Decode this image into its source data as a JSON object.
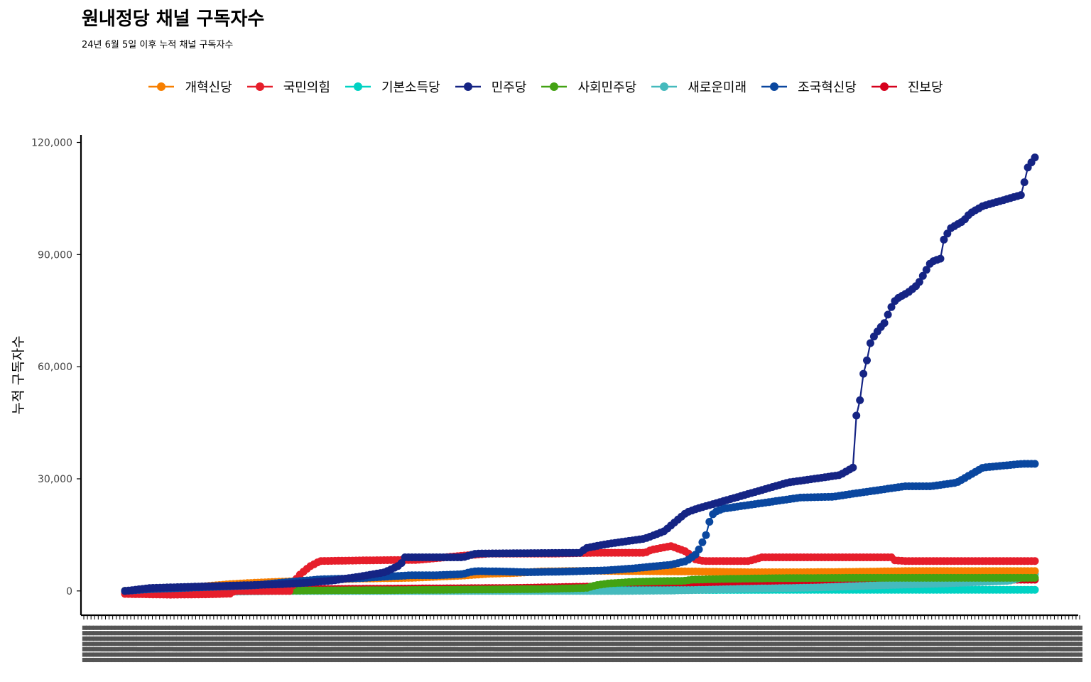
{
  "chart_data": {
    "type": "line",
    "title": "원내정당 채널 구독자수",
    "subtitle": "24년 6월 5일 이후 누적 채널 구독자수",
    "ylabel": "누적 구독자수",
    "xlabel": "",
    "ylim": [
      -6500,
      122000
    ],
    "yticks": [
      0,
      30000,
      60000,
      90000,
      120000
    ],
    "ytick_labels": [
      "0",
      "30,000",
      "60,000",
      "90,000",
      "120,000"
    ],
    "x_tick_count": 277,
    "n_points": 260,
    "legend_position": "top",
    "grid": false,
    "series": [
      {
        "name": "개혁신당",
        "color": "#F77F00",
        "points": [
          [
            0,
            0
          ],
          [
            20,
            200
          ],
          [
            40,
            700
          ],
          [
            60,
            1200
          ],
          [
            80,
            1800
          ],
          [
            100,
            2200
          ],
          [
            130,
            2600
          ],
          [
            160,
            3100
          ],
          [
            180,
            3300
          ],
          [
            200,
            3400
          ],
          [
            220,
            3500
          ],
          [
            240,
            3800
          ],
          [
            260,
            4100
          ],
          [
            280,
            4600
          ],
          [
            300,
            4800
          ],
          [
            320,
            5200
          ],
          [
            360,
            5400
          ],
          [
            400,
            5300
          ],
          [
            440,
            5200
          ],
          [
            480,
            5000
          ],
          [
            520,
            5000
          ],
          [
            560,
            5100
          ],
          [
            600,
            5300
          ]
        ]
      },
      {
        "name": "국민의힘",
        "color": "#E61E2B",
        "points": [
          [
            0,
            -800
          ],
          [
            35,
            -1000
          ],
          [
            65,
            -900
          ],
          [
            82,
            -700
          ],
          [
            84,
            0
          ],
          [
            128,
            0
          ],
          [
            130,
            2500
          ],
          [
            135,
            4500
          ],
          [
            142,
            6500
          ],
          [
            150,
            8000
          ],
          [
            190,
            8200
          ],
          [
            225,
            8300
          ],
          [
            262,
            9500
          ],
          [
            280,
            10000
          ],
          [
            330,
            10000
          ],
          [
            360,
            10200
          ],
          [
            380,
            10200
          ],
          [
            400,
            10200
          ],
          [
            405,
            11000
          ],
          [
            420,
            12000
          ],
          [
            432,
            10500
          ],
          [
            438,
            8500
          ],
          [
            445,
            8000
          ],
          [
            480,
            8000
          ],
          [
            490,
            9000
          ],
          [
            540,
            9000
          ],
          [
            590,
            9000
          ],
          [
            592,
            8200
          ],
          [
            600,
            8000
          ]
        ]
      },
      {
        "name": "기본소득당",
        "color": "#00D2C3",
        "points": [
          [
            0,
            0
          ],
          [
            100,
            50
          ],
          [
            200,
            100
          ],
          [
            300,
            150
          ],
          [
            400,
            200
          ],
          [
            500,
            300
          ],
          [
            600,
            300
          ]
        ]
      },
      {
        "name": "민주당",
        "color": "#152484",
        "points": [
          [
            0,
            0
          ],
          [
            20,
            800
          ],
          [
            40,
            1000
          ],
          [
            80,
            1400
          ],
          [
            120,
            1800
          ],
          [
            140,
            2200
          ],
          [
            160,
            2800
          ],
          [
            180,
            3800
          ],
          [
            200,
            5000
          ],
          [
            212,
            7000
          ],
          [
            215,
            9000
          ],
          [
            260,
            9000
          ],
          [
            270,
            10000
          ],
          [
            350,
            10200
          ],
          [
            355,
            11500
          ],
          [
            370,
            12500
          ],
          [
            380,
            13000
          ],
          [
            400,
            14000
          ],
          [
            415,
            16000
          ],
          [
            425,
            19000
          ],
          [
            432,
            21000
          ],
          [
            440,
            22000
          ],
          [
            470,
            25000
          ],
          [
            510,
            29000
          ],
          [
            530,
            30000
          ],
          [
            550,
            31000
          ],
          [
            555,
            32000
          ],
          [
            560,
            33000
          ],
          [
            562,
            46000
          ],
          [
            565,
            50000
          ],
          [
            568,
            58000
          ],
          [
            571,
            62000
          ],
          [
            573,
            66000
          ],
          [
            576,
            68000
          ],
          [
            580,
            70000
          ],
          [
            585,
            72000
          ],
          [
            588,
            75000
          ],
          [
            593,
            78000
          ],
          [
            603,
            80000
          ],
          [
            610,
            82000
          ],
          [
            615,
            85000
          ],
          [
            620,
            88000
          ],
          [
            628,
            89000
          ],
          [
            630,
            94000
          ],
          [
            635,
            97000
          ],
          [
            645,
            99000
          ],
          [
            650,
            101000
          ],
          [
            660,
            103000
          ],
          [
            670,
            104000
          ],
          [
            680,
            105000
          ],
          [
            690,
            106000
          ],
          [
            694,
            113000
          ],
          [
            700,
            116000
          ]
        ]
      },
      {
        "name": "사회민주당",
        "color": "#43A213",
        "points": [
          [
            0,
            0
          ],
          [
            120,
            100
          ],
          [
            200,
            200
          ],
          [
            320,
            500
          ],
          [
            355,
            800
          ],
          [
            362,
            1500
          ],
          [
            372,
            2000
          ],
          [
            390,
            2400
          ],
          [
            410,
            2600
          ],
          [
            430,
            2700
          ],
          [
            436,
            3000
          ],
          [
            460,
            3200
          ],
          [
            500,
            3400
          ],
          [
            560,
            3500
          ],
          [
            600,
            3500
          ]
        ]
      },
      {
        "name": "새로운미래",
        "color": "#45BABD",
        "points": [
          [
            0,
            -300
          ],
          [
            80,
            -200
          ],
          [
            100,
            -100
          ],
          [
            120,
            0
          ],
          [
            200,
            0
          ],
          [
            300,
            0
          ],
          [
            380,
            0
          ],
          [
            420,
            100
          ],
          [
            480,
            600
          ],
          [
            530,
            900
          ],
          [
            580,
            1500
          ],
          [
            630,
            2000
          ],
          [
            680,
            2700
          ],
          [
            700,
            4500
          ]
        ]
      },
      {
        "name": "조국혁신당",
        "color": "#0A479F",
        "points": [
          [
            0,
            0
          ],
          [
            20,
            500
          ],
          [
            60,
            1000
          ],
          [
            100,
            1500
          ],
          [
            120,
            2200
          ],
          [
            150,
            3100
          ],
          [
            180,
            3400
          ],
          [
            200,
            3800
          ],
          [
            220,
            4200
          ],
          [
            240,
            4200
          ],
          [
            260,
            4500
          ],
          [
            265,
            5000
          ],
          [
            270,
            5300
          ],
          [
            290,
            5200
          ],
          [
            310,
            5000
          ],
          [
            340,
            5200
          ],
          [
            370,
            5500
          ],
          [
            390,
            6000
          ],
          [
            420,
            7000
          ],
          [
            432,
            8000
          ],
          [
            440,
            10000
          ],
          [
            447,
            15000
          ],
          [
            450,
            19000
          ],
          [
            453,
            21000
          ],
          [
            460,
            22000
          ],
          [
            480,
            23000
          ],
          [
            500,
            24000
          ],
          [
            520,
            25000
          ],
          [
            545,
            25200
          ],
          [
            560,
            26000
          ],
          [
            580,
            27000
          ],
          [
            600,
            28000
          ],
          [
            620,
            28000
          ],
          [
            640,
            29000
          ],
          [
            650,
            31000
          ],
          [
            655,
            32000
          ],
          [
            660,
            33000
          ],
          [
            690,
            34000
          ],
          [
            700,
            34000
          ]
        ]
      },
      {
        "name": "진보당",
        "color": "#D6001C",
        "points": [
          [
            0,
            0
          ],
          [
            10,
            -300
          ],
          [
            20,
            200
          ],
          [
            100,
            400
          ],
          [
            200,
            600
          ],
          [
            300,
            800
          ],
          [
            380,
            1300
          ],
          [
            420,
            1700
          ],
          [
            460,
            2200
          ],
          [
            500,
            2500
          ],
          [
            540,
            2700
          ],
          [
            580,
            2800
          ],
          [
            620,
            2900
          ],
          [
            660,
            3000
          ],
          [
            700,
            3000
          ]
        ]
      }
    ]
  }
}
